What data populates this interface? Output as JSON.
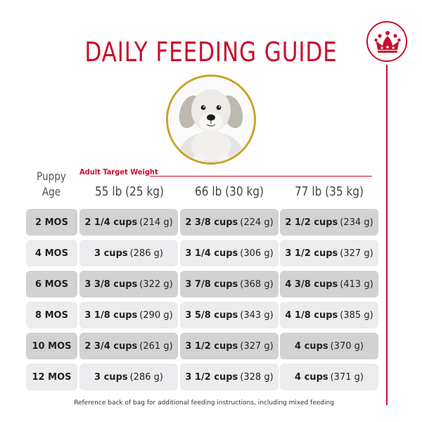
{
  "title": "DAILY FEEDING GUIDE",
  "colors": {
    "brand_red": "#c8102e",
    "gold": "#c9a227",
    "row_dark": "#d2d2d4",
    "row_light": "#ececee"
  },
  "header": {
    "puppy_age_line1": "Puppy",
    "puppy_age_line2": "Age",
    "adult_target_weight": "Adult Target Weight",
    "columns": [
      "55 lb (25 kg)",
      "66 lb (30 kg)",
      "77 lb (35 kg)"
    ]
  },
  "rows": [
    {
      "age": "2 MOS",
      "shade": "dark",
      "cells": [
        {
          "cups": "2 1/4 cups",
          "grams": "(214 g)"
        },
        {
          "cups": "2 3/8 cups",
          "grams": "(224 g)"
        },
        {
          "cups": "2 1/2 cups",
          "grams": "(234 g)"
        }
      ]
    },
    {
      "age": "4 MOS",
      "shade": "light",
      "cells": [
        {
          "cups": "3 cups",
          "grams": "(286 g)"
        },
        {
          "cups": "3 1/4 cups",
          "grams": "(306 g)"
        },
        {
          "cups": "3 1/2 cups",
          "grams": "(327 g)"
        }
      ]
    },
    {
      "age": "6 MOS",
      "shade": "dark",
      "cells": [
        {
          "cups": "3 3/8 cups",
          "grams": "(322 g)"
        },
        {
          "cups": "3 7/8 cups",
          "grams": "(368 g)"
        },
        {
          "cups": "4 3/8 cups",
          "grams": "(413 g)"
        }
      ]
    },
    {
      "age": "8 MOS",
      "shade": "light",
      "cells": [
        {
          "cups": "3 1/8 cups",
          "grams": "(290 g)"
        },
        {
          "cups": "3 5/8 cups",
          "grams": "(343 g)"
        },
        {
          "cups": "4 1/8 cups",
          "grams": "(385 g)"
        }
      ]
    },
    {
      "age": "10 MOS",
      "shade": "dark",
      "cells": [
        {
          "cups": "2 3/4 cups",
          "grams": "(261 g)"
        },
        {
          "cups": "3 1/2 cups",
          "grams": "(327 g)"
        },
        {
          "cups": "4 cups",
          "grams": "(370 g)"
        }
      ]
    },
    {
      "age": "12 MOS",
      "shade": "light",
      "cells": [
        {
          "cups": "3 cups",
          "grams": "(286 g)"
        },
        {
          "cups": "3 1/2 cups",
          "grams": "(328 g)"
        },
        {
          "cups": "4 cups",
          "grams": "(371 g)"
        }
      ]
    }
  ],
  "footnote": "Reference back of bag for additional feeding instructions, including mixed feeding",
  "icons": {
    "brand": "crown-icon",
    "photo": "puppy-photo"
  }
}
